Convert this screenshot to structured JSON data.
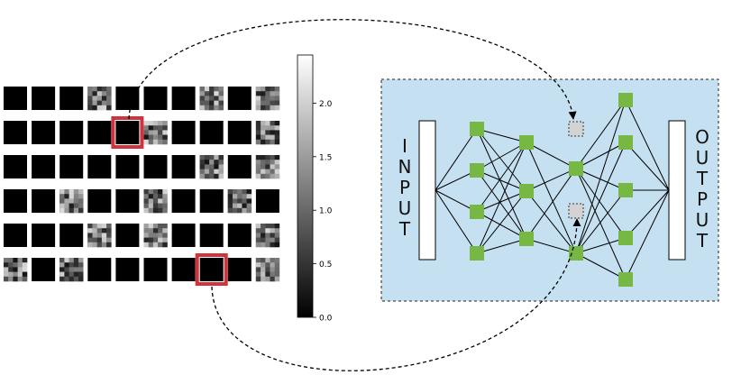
{
  "colorbar": {
    "ticks": [
      {
        "value": 0.0,
        "label": "0.0"
      },
      {
        "value": 0.5,
        "label": "0.5"
      },
      {
        "value": 1.0,
        "label": "1.0"
      },
      {
        "value": 1.5,
        "label": "1.5"
      },
      {
        "value": 2.0,
        "label": "2.0"
      }
    ],
    "range": [
      0,
      2.45
    ],
    "colormap": "gray"
  },
  "filter_grid": {
    "rows": 6,
    "cols": 10,
    "active": [
      [
        0,
        0,
        0,
        1,
        0,
        0,
        0,
        1,
        0,
        1
      ],
      [
        0,
        0,
        0,
        0,
        0,
        1,
        0,
        0,
        0,
        1
      ],
      [
        0,
        0,
        0,
        0,
        0,
        0,
        0,
        1,
        0,
        1
      ],
      [
        0,
        0,
        1,
        0,
        0,
        1,
        0,
        0,
        1,
        0
      ],
      [
        0,
        0,
        0,
        1,
        0,
        1,
        0,
        0,
        0,
        1
      ],
      [
        1,
        0,
        1,
        0,
        0,
        0,
        0,
        0,
        0,
        1
      ]
    ],
    "highlighted": [
      [
        1,
        4
      ],
      [
        5,
        7
      ]
    ],
    "highlight_color": "#d2323c"
  },
  "network": {
    "input_label": [
      "I",
      "N",
      "P",
      "U",
      "T"
    ],
    "output_label": [
      "O",
      "U",
      "T",
      "P",
      "U",
      "T"
    ],
    "panel_color": "#c5e0f0",
    "node_color": "#77b743",
    "dropped_node_color": "#d3d3d3"
  }
}
